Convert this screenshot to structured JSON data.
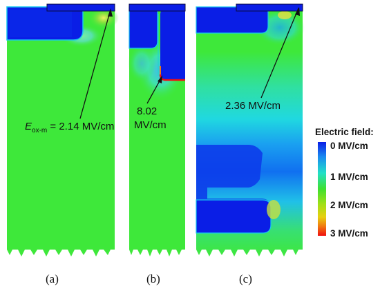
{
  "panels": [
    {
      "caption": "(a)"
    },
    {
      "caption": "(b)"
    },
    {
      "caption": "(c)"
    }
  ],
  "annotations": {
    "a": {
      "symbol": "E",
      "subscript": "ox-m",
      "value": " = 2.14 MV/cm"
    },
    "b": {
      "line1": "8.02",
      "line2": "MV/cm"
    },
    "c": {
      "text": "2.36 MV/cm"
    }
  },
  "legend": {
    "title": "Electric field:",
    "ticks": [
      "0 MV/cm",
      "1 MV/cm",
      "2 MV/cm",
      "3 MV/cm"
    ],
    "colors": [
      "#0a1ee6",
      "#1aa8f0",
      "#22e0c8",
      "#3ee030",
      "#9fe018",
      "#e8d010",
      "#f07810",
      "#f01010"
    ]
  }
}
